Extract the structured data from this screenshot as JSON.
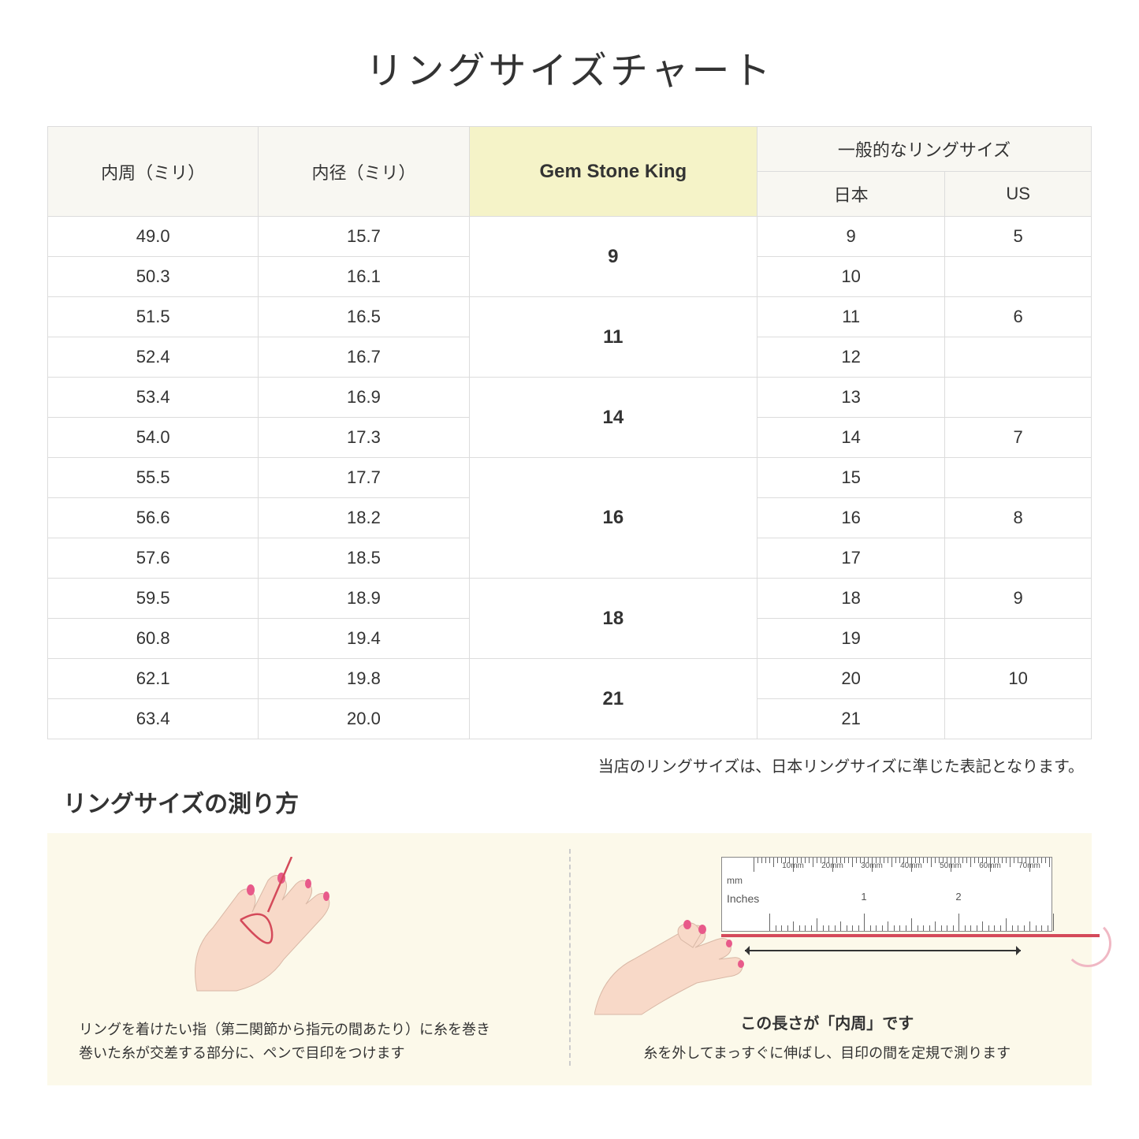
{
  "title": "リングサイズチャート",
  "headers": {
    "circumference": "内周（ミリ）",
    "diameter": "内径（ミリ）",
    "gsk": "Gem Stone King",
    "common": "一般的なリングサイズ",
    "japan": "日本",
    "us": "US"
  },
  "groups": [
    {
      "gsk": "9",
      "rows": [
        {
          "c": "49.0",
          "d": "15.7",
          "jp": "9",
          "us": "5"
        },
        {
          "c": "50.3",
          "d": "16.1",
          "jp": "10",
          "us": ""
        }
      ]
    },
    {
      "gsk": "11",
      "rows": [
        {
          "c": "51.5",
          "d": "16.5",
          "jp": "11",
          "us": "6"
        },
        {
          "c": "52.4",
          "d": "16.7",
          "jp": "12",
          "us": ""
        }
      ]
    },
    {
      "gsk": "14",
      "rows": [
        {
          "c": "53.4",
          "d": "16.9",
          "jp": "13",
          "us": ""
        },
        {
          "c": "54.0",
          "d": "17.3",
          "jp": "14",
          "us": "7"
        }
      ]
    },
    {
      "gsk": "16",
      "rows": [
        {
          "c": "55.5",
          "d": "17.7",
          "jp": "15",
          "us": ""
        },
        {
          "c": "56.6",
          "d": "18.2",
          "jp": "16",
          "us": "8"
        },
        {
          "c": "57.6",
          "d": "18.5",
          "jp": "17",
          "us": ""
        }
      ]
    },
    {
      "gsk": "18",
      "rows": [
        {
          "c": "59.5",
          "d": "18.9",
          "jp": "18",
          "us": "9"
        },
        {
          "c": "60.8",
          "d": "19.4",
          "jp": "19",
          "us": ""
        }
      ]
    },
    {
      "gsk": "21",
      "rows": [
        {
          "c": "62.1",
          "d": "19.8",
          "jp": "20",
          "us": "10"
        },
        {
          "c": "63.4",
          "d": "20.0",
          "jp": "21",
          "us": ""
        }
      ]
    }
  ],
  "note": "当店のリングサイズは、日本リングサイズに準じた表記となります。",
  "measure_title": "リングサイズの測り方",
  "panel1_text": "リングを着けたい指（第二関節から指元の間あたり）に糸を巻き\n巻いた糸が交差する部分に、ペンで目印をつけます",
  "panel2_label": "この長さが「内周」です",
  "panel2_text": "糸を外してまっすぐに伸ばし、目印の間を定規で測ります",
  "ruler": {
    "mm_unit": "mm",
    "in_unit": "Inches",
    "mm_labels": [
      "10mm",
      "20mm",
      "30mm",
      "40mm",
      "50mm",
      "60mm",
      "70mm"
    ],
    "in_labels": [
      "1",
      "2"
    ]
  },
  "colors": {
    "header_bg": "#f8f7f2",
    "highlight_bg": "#f5f3c8",
    "border": "#dcdcdc",
    "instruction_bg": "#fcf9ea",
    "skin": "#f8d9c8",
    "nail": "#e85a8a",
    "thread": "#d44a5a"
  }
}
